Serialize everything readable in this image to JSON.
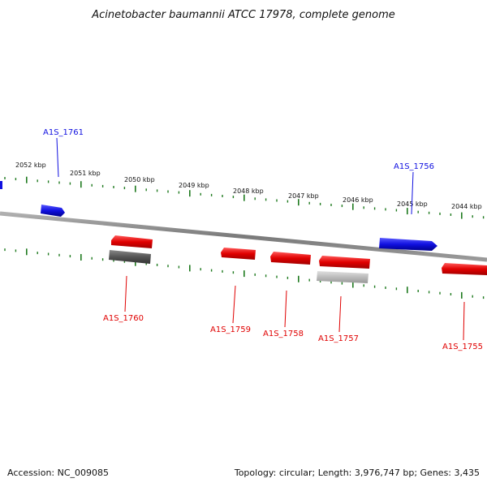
{
  "title": "Acinetobacter baumannii ATCC 17978, complete genome",
  "footer": {
    "accession": "Accession: NC_009085",
    "summary": "Topology: circular; Length: 3,976,747 bp; Genes: 3,435"
  },
  "colors": {
    "forward_gene": "#1010e0",
    "reverse_gene": "#e00000",
    "backbone": "#808080",
    "tick": "#1f7a1f",
    "rna_dark": "#555555",
    "rna_light": "#bbbbbb"
  },
  "scale_labels": [
    "2052 kbp",
    "2051 kbp",
    "2050 kbp",
    "2049 kbp",
    "2048 kbp",
    "2047 kbp",
    "2046 kbp",
    "2045 kbp",
    "2044 kbp"
  ],
  "gene_labels": [
    {
      "text": "A1S_1761",
      "strand": "forward"
    },
    {
      "text": "A1S_1756",
      "strand": "forward"
    },
    {
      "text": "A1S_1760",
      "strand": "reverse"
    },
    {
      "text": "A1S_1759",
      "strand": "reverse"
    },
    {
      "text": "A1S_1758",
      "strand": "reverse"
    },
    {
      "text": "A1S_1757",
      "strand": "reverse"
    },
    {
      "text": "A1S_1755",
      "strand": "reverse"
    }
  ]
}
